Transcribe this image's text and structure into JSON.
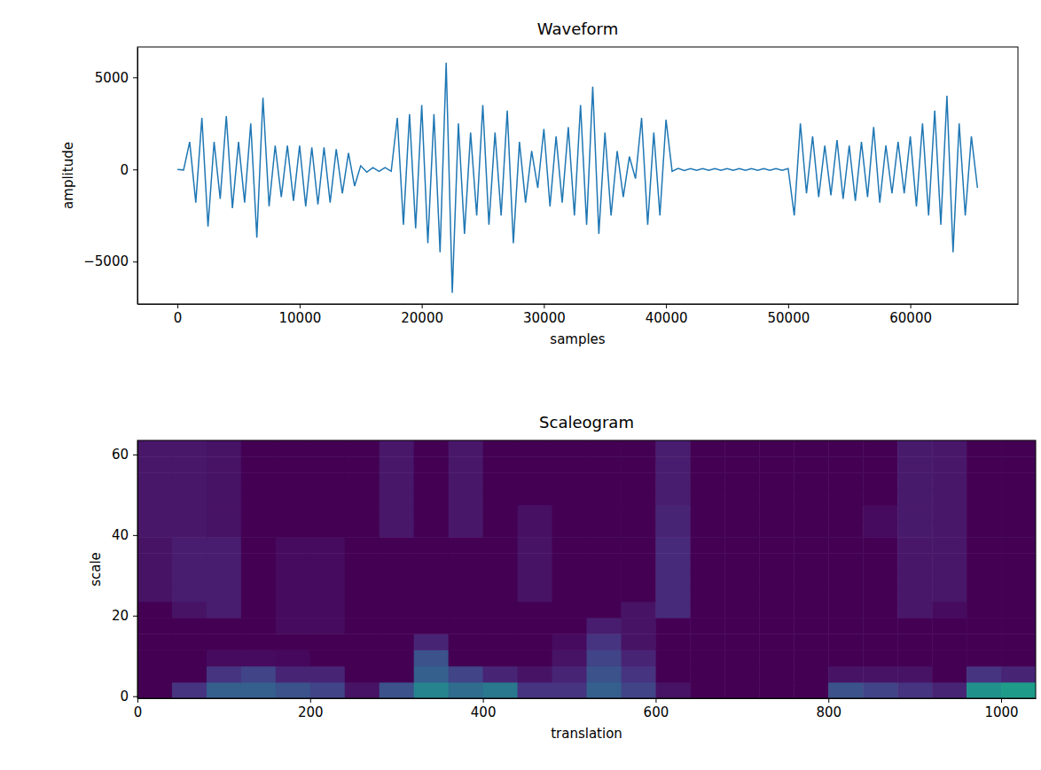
{
  "chart_data": [
    {
      "type": "line",
      "title": "Waveform",
      "x_label": "samples",
      "y_label": "amplitude",
      "x": [
        0,
        500,
        1000,
        1500,
        2000,
        2500,
        3000,
        3500,
        4000,
        4500,
        5000,
        5500,
        6000,
        6500,
        7000,
        7500,
        8000,
        8500,
        9000,
        9500,
        10000,
        10500,
        11000,
        11500,
        12000,
        12500,
        13000,
        13500,
        14000,
        14500,
        15000,
        15500,
        16000,
        16500,
        17000,
        17500,
        18000,
        18500,
        19000,
        19500,
        20000,
        20500,
        21000,
        21500,
        22000,
        22500,
        23000,
        23500,
        24000,
        24500,
        25000,
        25500,
        26000,
        26500,
        27000,
        27500,
        28000,
        28500,
        29000,
        29500,
        30000,
        30500,
        31000,
        31500,
        32000,
        32500,
        33000,
        33500,
        34000,
        34500,
        35000,
        35500,
        36000,
        36500,
        37000,
        37500,
        38000,
        38500,
        39000,
        39500,
        40000,
        40500,
        41000,
        41500,
        42000,
        42500,
        43000,
        43500,
        44000,
        44500,
        45000,
        45500,
        46000,
        46500,
        47000,
        47500,
        48000,
        48500,
        49000,
        49500,
        50000,
        50500,
        51000,
        51500,
        52000,
        52500,
        53000,
        53500,
        54000,
        54500,
        55000,
        55500,
        56000,
        56500,
        57000,
        57500,
        58000,
        58500,
        59000,
        59500,
        60000,
        60500,
        61000,
        61500,
        62000,
        62500,
        63000,
        63500,
        64000,
        64500,
        65000,
        65500
      ],
      "series": [
        {
          "color": "#1f77b4",
          "values": [
            0,
            -30,
            1500,
            -1800,
            2800,
            -3100,
            1500,
            -1600,
            2900,
            -2100,
            1500,
            -1800,
            2500,
            -3700,
            3900,
            -2000,
            1300,
            -1500,
            1300,
            -1700,
            1300,
            -2000,
            1200,
            -1900,
            1200,
            -1800,
            1100,
            -1300,
            900,
            -900,
            200,
            -150,
            100,
            -100,
            100,
            -100,
            2800,
            -3000,
            3000,
            -3200,
            3500,
            -4000,
            3000,
            -4500,
            5800,
            -6700,
            2500,
            -3500,
            2000,
            -2500,
            3500,
            -3000,
            2000,
            -2500,
            3200,
            -4000,
            1500,
            -1800,
            1000,
            -1000,
            2200,
            -2000,
            1800,
            -1800,
            2300,
            -2500,
            3500,
            -3000,
            4500,
            -3500,
            2000,
            -2500,
            1000,
            -1500,
            700,
            -500,
            2800,
            -3000,
            2000,
            -2500,
            2700,
            -100,
            60,
            -60,
            50,
            -50,
            50,
            -50,
            50,
            -50,
            50,
            -50,
            50,
            -50,
            50,
            -50,
            50,
            -50,
            50,
            -50,
            50,
            -2500,
            2500,
            -1300,
            1800,
            -1500,
            1300,
            -1400,
            1600,
            -1600,
            1300,
            -1700,
            1500,
            -1500,
            2300,
            -1800,
            1300,
            -1300,
            1500,
            -1300,
            1800,
            -2000,
            2500,
            -2500,
            3200,
            -3000,
            4000,
            -4500,
            2500,
            -2500,
            1800,
            -1000
          ]
        }
      ],
      "xlim": [
        -3277,
        68813
      ],
      "ylim": [
        -7300,
        6650
      ],
      "xticks": [
        0,
        10000,
        20000,
        30000,
        40000,
        50000,
        60000
      ],
      "yticks": [
        {
          "value": -5000,
          "label": "−5000"
        },
        0,
        5000
      ]
    },
    {
      "type": "heatmap",
      "title": "Scaleogram",
      "x_label": "translation",
      "y_label": "scale",
      "color": "viridis",
      "x_edges": [
        0,
        40,
        80,
        120,
        160,
        200,
        240,
        280,
        320,
        360,
        400,
        440,
        480,
        520,
        560,
        600,
        640,
        680,
        720,
        760,
        800,
        840,
        880,
        920,
        960,
        1000,
        1040
      ],
      "y_edges": [
        -0.5,
        3.5,
        7.5,
        11.5,
        15.5,
        19.5,
        23.5,
        27.5,
        31.5,
        35.5,
        39.5,
        43.5,
        47.5,
        51.5,
        55.5,
        59.5,
        63.5
      ],
      "values": [
        [
          0,
          0.15,
          0.3,
          0.3,
          0.25,
          0.2,
          0.05,
          0.25,
          0.45,
          0.35,
          0.4,
          0.15,
          0.15,
          0.3,
          0.2,
          0.05,
          0,
          0,
          0,
          0,
          0.25,
          0.2,
          0.15,
          0.1,
          0.5,
          0.55
        ],
        [
          0,
          0,
          0.15,
          0.2,
          0.1,
          0.1,
          0,
          0,
          0.3,
          0.2,
          0.1,
          0.05,
          0.1,
          0.25,
          0.15,
          0,
          0,
          0,
          0,
          0,
          0.05,
          0.05,
          0.05,
          0,
          0.15,
          0.1
        ],
        [
          0,
          0,
          0.03,
          0.03,
          0.02,
          0,
          0,
          0,
          0.25,
          0,
          0,
          0,
          0.05,
          0.2,
          0.1,
          0,
          0,
          0,
          0,
          0,
          0,
          0,
          0,
          0,
          0,
          0
        ],
        [
          0,
          0,
          0,
          0,
          0,
          0,
          0,
          0,
          0.1,
          0,
          0,
          0,
          0.03,
          0.15,
          0.05,
          0,
          0,
          0,
          0,
          0,
          0,
          0,
          0,
          0,
          0,
          0
        ],
        [
          0,
          0,
          0,
          0,
          0.03,
          0.03,
          0,
          0,
          0,
          0,
          0,
          0,
          0,
          0.08,
          0.05,
          0,
          0,
          0,
          0,
          0,
          0,
          0,
          0,
          0,
          0,
          0
        ],
        [
          0,
          0.05,
          0.08,
          0,
          0.03,
          0.03,
          0,
          0,
          0,
          0,
          0,
          0,
          0,
          0,
          0.05,
          0.12,
          0,
          0,
          0,
          0,
          0,
          0,
          0.06,
          0.03,
          0,
          0
        ],
        [
          0.05,
          0.08,
          0.08,
          0,
          0.03,
          0.03,
          0,
          0,
          0,
          0,
          0,
          0.05,
          0,
          0,
          0,
          0.12,
          0,
          0,
          0,
          0,
          0,
          0,
          0.06,
          0.06,
          0,
          0
        ],
        [
          0.05,
          0.08,
          0.08,
          0,
          0.03,
          0.03,
          0,
          0,
          0,
          0,
          0,
          0.05,
          0,
          0,
          0,
          0.12,
          0,
          0,
          0,
          0,
          0,
          0,
          0.06,
          0.06,
          0,
          0
        ],
        [
          0.05,
          0.08,
          0.08,
          0,
          0.03,
          0.03,
          0,
          0,
          0,
          0,
          0,
          0.05,
          0,
          0,
          0,
          0.12,
          0,
          0,
          0,
          0,
          0,
          0,
          0.06,
          0.06,
          0,
          0
        ],
        [
          0.05,
          0.08,
          0.08,
          0,
          0.03,
          0.03,
          0,
          0,
          0,
          0,
          0,
          0.05,
          0,
          0,
          0,
          0.12,
          0,
          0,
          0,
          0,
          0,
          0,
          0.06,
          0.06,
          0,
          0
        ],
        [
          0.06,
          0.06,
          0.05,
          0,
          0,
          0,
          0,
          0.06,
          0,
          0.06,
          0,
          0.04,
          0,
          0,
          0,
          0.1,
          0,
          0,
          0,
          0,
          0,
          0.03,
          0.07,
          0.06,
          0,
          0
        ],
        [
          0.06,
          0.06,
          0.05,
          0,
          0,
          0,
          0,
          0.06,
          0,
          0.06,
          0,
          0.04,
          0,
          0,
          0,
          0.1,
          0,
          0,
          0,
          0,
          0,
          0.03,
          0.07,
          0.06,
          0,
          0
        ],
        [
          0.06,
          0.06,
          0.05,
          0,
          0,
          0,
          0,
          0.06,
          0,
          0.06,
          0,
          0,
          0,
          0,
          0,
          0.08,
          0,
          0,
          0,
          0,
          0,
          0,
          0.07,
          0.06,
          0,
          0
        ],
        [
          0.06,
          0.06,
          0.05,
          0,
          0,
          0,
          0,
          0.06,
          0,
          0.06,
          0,
          0,
          0,
          0,
          0,
          0.08,
          0,
          0,
          0,
          0,
          0,
          0,
          0.07,
          0.06,
          0,
          0
        ],
        [
          0.06,
          0.06,
          0.05,
          0,
          0,
          0,
          0,
          0.06,
          0,
          0.06,
          0,
          0,
          0,
          0,
          0,
          0.08,
          0,
          0,
          0,
          0,
          0,
          0,
          0.07,
          0.06,
          0,
          0
        ],
        [
          0.06,
          0.06,
          0.05,
          0,
          0,
          0,
          0,
          0.06,
          0,
          0.06,
          0,
          0,
          0,
          0,
          0,
          0.08,
          0,
          0,
          0,
          0,
          0,
          0,
          0.07,
          0.06,
          0,
          0
        ]
      ],
      "zlim": [
        0,
        1
      ],
      "xlim": [
        0,
        1040
      ],
      "ylim": [
        -0.5,
        63.5
      ],
      "xticks": [
        0,
        200,
        400,
        600,
        800,
        1000
      ],
      "yticks": [
        0,
        20,
        40,
        60
      ]
    }
  ]
}
